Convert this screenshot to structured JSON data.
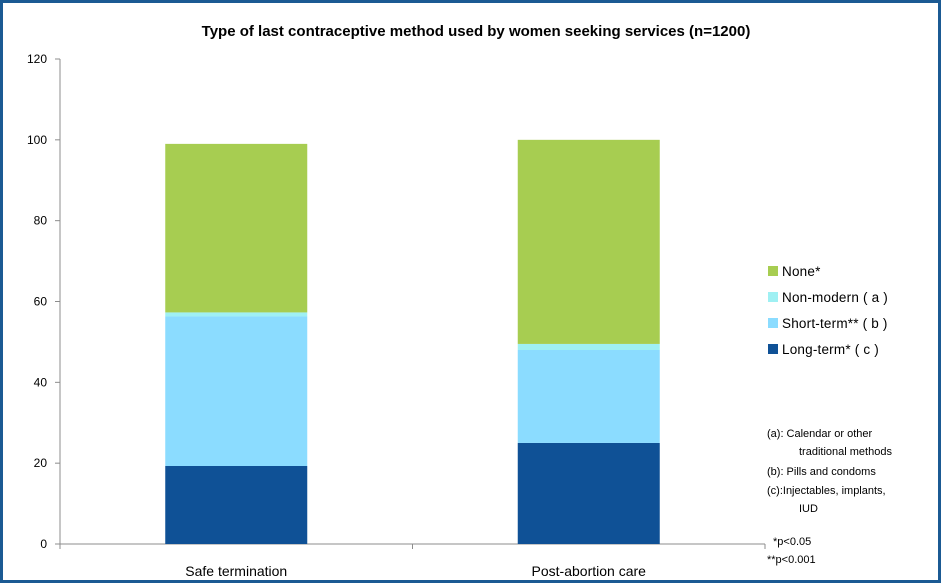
{
  "chart_data": {
    "type": "bar",
    "stacked": true,
    "title": "Type of last contraceptive method used by women seeking services (n=1200)",
    "xlabel": "",
    "ylabel": "",
    "categories": [
      "Safe termination",
      "Post-abortion care"
    ],
    "ylim": [
      0,
      120
    ],
    "yticks": [
      0,
      20,
      40,
      60,
      80,
      100,
      120
    ],
    "grid": false,
    "legend_position": "right",
    "series": [
      {
        "name": "Long-term* ( c )",
        "color": "#0f5196",
        "values": [
          19.3,
          25.0
        ]
      },
      {
        "name": "Short-term** ( b )",
        "color": "#8bdcff",
        "values": [
          37.0,
          23.0
        ]
      },
      {
        "name": "Non-modern ( a )",
        "color": "#9ff0f3",
        "values": [
          1.0,
          1.5
        ]
      },
      {
        "name": "None*",
        "color": "#a7cd51",
        "values": [
          41.7,
          50.5
        ]
      }
    ],
    "notes": [
      "(a): Calendar or other",
      "traditional methods",
      "(b): Pills and condoms",
      "(c):Injectables, implants,",
      "IUD"
    ],
    "significance": [
      "*p<0.05",
      "**p<0.001"
    ]
  }
}
